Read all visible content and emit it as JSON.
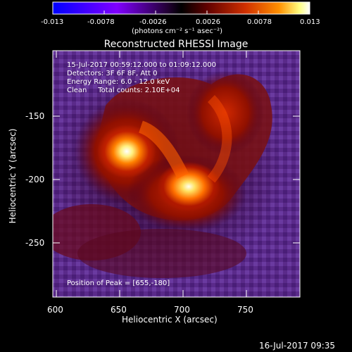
{
  "colorbar": {
    "ticks": [
      "-0.013",
      "-0.0078",
      "-0.0026",
      "0.0026",
      "0.0078",
      "0.013"
    ],
    "unit_label": "(photons cm⁻² s⁻¹ asec⁻²)",
    "colors": [
      "#0000ff",
      "#8000ff",
      "#2a0040",
      "#000000",
      "#500000",
      "#c02000",
      "#ff8000",
      "#ffff80",
      "#ffffff"
    ]
  },
  "plot": {
    "title": "Reconstructed RHESSI Image",
    "xlabel": "Heliocentric X (arcsec)",
    "ylabel": "Heliocentric Y (arcsec)",
    "x_ticks": [
      "600",
      "650",
      "700",
      "750"
    ],
    "y_ticks": [
      "-150",
      "-200",
      "-250"
    ],
    "xlim": [
      597,
      793
    ],
    "ylim": [
      -293,
      -114
    ]
  },
  "annotations": {
    "line1": "15-Jul-2017 00:59:12.000 to 01:09:12.000",
    "line2": "Detectors: 3F 6F 8F, Att 0",
    "line3": "Energy Range: 6.0 - 12.0 keV",
    "line4": "Clean     Total counts: 2.10E+04",
    "peak": "Position of Peak = [655,-180]"
  },
  "timestamp": "16-Jul-2017 09:35"
}
